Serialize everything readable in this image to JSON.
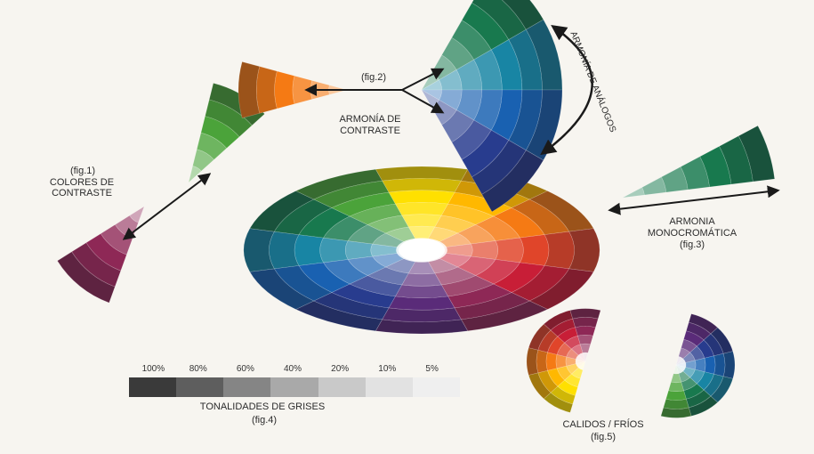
{
  "fig1": {
    "fig": "(fig.1)",
    "title": [
      "COLORES DE",
      "CONTRASTE"
    ]
  },
  "fig2": {
    "fig": "(fig.2)",
    "title": [
      "ARMONÍA DE",
      "CONTRASTE"
    ]
  },
  "analog": {
    "title": "ARMONÍA DE ANÁLOGOS"
  },
  "fig3": {
    "title": [
      "ARMONIA",
      "MONOCROMÁTICA"
    ],
    "fig": "(fig.3)"
  },
  "fig4": {
    "title": "TONALIDADES DE GRISES",
    "fig": "(fig.4)",
    "steps": [
      {
        "label": "100%",
        "color": "#3a3a3a"
      },
      {
        "label": "80%",
        "color": "#5e5e5e"
      },
      {
        "label": "60%",
        "color": "#858585"
      },
      {
        "label": "40%",
        "color": "#a9a9a9"
      },
      {
        "label": "20%",
        "color": "#c9c9c9"
      },
      {
        "label": "10%",
        "color": "#e2e2e2"
      },
      {
        "label": "5%",
        "color": "#efefef"
      }
    ]
  },
  "fig5": {
    "title": "CALIDOS / FRÍOS",
    "fig": "(fig.5)"
  },
  "colors": {
    "hues": [
      "#ffe000",
      "#ffb800",
      "#f57a14",
      "#e0452a",
      "#c81e37",
      "#8e2856",
      "#5a2b79",
      "#283c8e",
      "#1961b1",
      "#1885a4",
      "#18794e",
      "#4ba33a"
    ],
    "arrow": "#1a1a1a",
    "center": "#ffffff"
  }
}
